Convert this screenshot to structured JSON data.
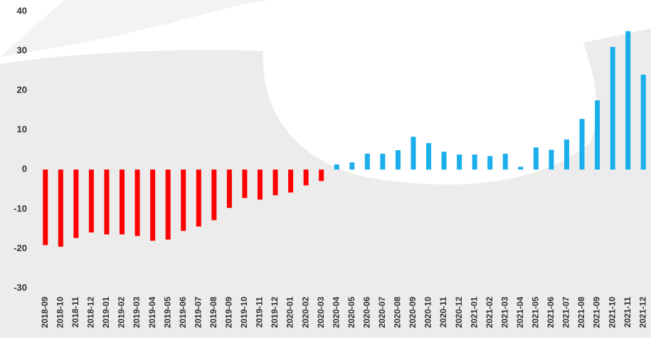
{
  "chart_data": {
    "type": "bar",
    "categories": [
      "2018-09",
      "2018-10",
      "2018-11",
      "2018-12",
      "2019-01",
      "2019-02",
      "2019-03",
      "2019-04",
      "2019-05",
      "2019-06",
      "2019-07",
      "2019-08",
      "2019-09",
      "2019-10",
      "2019-11",
      "2019-12",
      "2020-01",
      "2020-02",
      "2020-03",
      "2020-04",
      "2020-05",
      "2020-06",
      "2020-07",
      "2020-08",
      "2020-09",
      "2020-10",
      "2020-11",
      "2020-12",
      "2021-01",
      "2021-02",
      "2021-03",
      "2021-04",
      "2021-05",
      "2021-06",
      "2021-07",
      "2021-08",
      "2021-09",
      "2021-10",
      "2021-11",
      "2021-12"
    ],
    "values": [
      -19.1,
      -19.5,
      -17.3,
      -15.9,
      -16.4,
      -16.4,
      -16.8,
      -18,
      -17.7,
      -15.5,
      -14.4,
      -12.8,
      -9.7,
      -7.2,
      -7.6,
      -6.5,
      -5.8,
      -4,
      -2.9,
      1.3,
      1.8,
      4,
      4,
      4.9,
      8.3,
      6.7,
      4.5,
      3.8,
      3.8,
      3.4,
      4,
      0.7,
      5.6,
      5,
      7.6,
      12.8,
      17.5,
      31,
      35,
      24
    ],
    "negative_color": "#ff0000",
    "positive_color": "#1aaeeb",
    "ylim": [
      -30,
      40
    ],
    "yticks": [
      -30,
      -20,
      -10,
      0,
      10,
      20,
      30,
      40
    ],
    "grid": false
  }
}
